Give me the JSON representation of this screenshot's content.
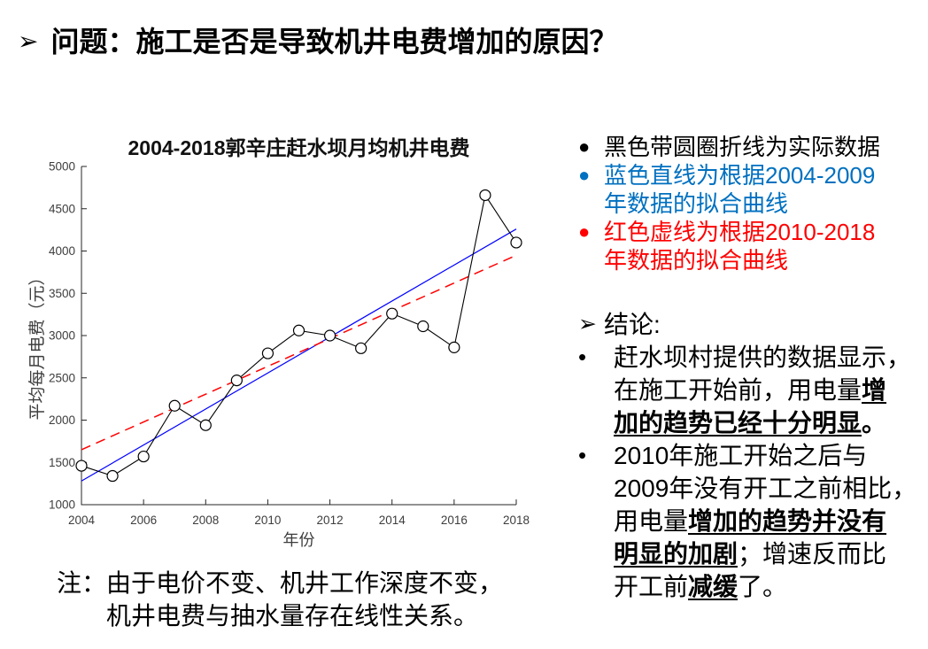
{
  "slide": {
    "title": {
      "marker": "➢",
      "text": "问题：施工是否是导致机井电费增加的原因？"
    },
    "note": {
      "label": "注：",
      "lines": [
        "由于电价不变、机井工作深度不变，",
        "机井电费与抽水量存在线性关系。"
      ]
    }
  },
  "colors": {
    "actual_series": "#000000",
    "fit_blue_line": "#0000FF",
    "fit_red_line": "#FF0000",
    "legend_blue_text": "#0070C0",
    "legend_red_text": "#FF0000",
    "axis": "#262626"
  },
  "chart_data": {
    "type": "line",
    "title": "2004-2018郭辛庄赶水坝月均机井电费",
    "xlabel": "年份",
    "ylabel": "平均每月电费（元）",
    "xlim": [
      2004,
      2018
    ],
    "ylim": [
      1000,
      5000
    ],
    "xticks": [
      2004,
      2006,
      2008,
      2010,
      2012,
      2014,
      2016,
      2018
    ],
    "yticks": [
      1000,
      1500,
      2000,
      2500,
      3000,
      3500,
      4000,
      4500,
      5000
    ],
    "grid": false,
    "legend_position": "none",
    "x": [
      2004,
      2005,
      2006,
      2007,
      2008,
      2009,
      2010,
      2011,
      2012,
      2013,
      2014,
      2015,
      2016,
      2017,
      2018
    ],
    "series": [
      {
        "name": "黑色带圆圈折线（实际数据）",
        "kind": "line-markers",
        "color": "#000000",
        "marker": "circle-open",
        "values": [
          1460,
          1340,
          1570,
          2170,
          1940,
          2470,
          2790,
          3060,
          3000,
          2850,
          3260,
          3110,
          2860,
          4660,
          4100
        ]
      },
      {
        "name": "蓝色直线（根据2004-2009年数据的拟合曲线）",
        "kind": "trend",
        "color": "#0000FF",
        "dashed": false,
        "endpoints": {
          "x": [
            2004,
            2018
          ],
          "y": [
            1280,
            4260
          ]
        }
      },
      {
        "name": "红色虚线（根据2010-2018年数据的拟合曲线）",
        "kind": "trend",
        "color": "#FF0000",
        "dashed": true,
        "endpoints": {
          "x": [
            2004,
            2018
          ],
          "y": [
            1650,
            3950
          ]
        }
      }
    ]
  },
  "legend": {
    "items": [
      {
        "bullet": "●",
        "color": "#000000",
        "lines": [
          "黑色带圆圈折线为实际数据",
          ""
        ]
      },
      {
        "bullet": "●",
        "color": "#0070C0",
        "lines": [
          "蓝色直线为根据2004-2009",
          "年数据的拟合曲线"
        ]
      },
      {
        "bullet": "●",
        "color": "#FF0000",
        "lines": [
          "红色虚线为根据2010-2018",
          "年数据的拟合曲线"
        ]
      }
    ]
  },
  "conclusion": {
    "header": {
      "marker": "➢",
      "text": "结论:"
    },
    "bullets": [
      {
        "marker": "•",
        "lines": [
          {
            "segments": [
              {
                "text": "赶水坝村提供的数据显示，"
              }
            ]
          },
          {
            "segments": [
              {
                "text": "在施工开始前，用电量"
              },
              {
                "text": "增",
                "em": true
              }
            ]
          },
          {
            "segments": [
              {
                "text": "加的趋势已经十分明显",
                "em": true
              },
              {
                "text": "。",
                "bold": true
              }
            ]
          }
        ]
      },
      {
        "marker": "•",
        "lines": [
          {
            "segments": [
              {
                "text": "2010年施工开始之后与"
              }
            ]
          },
          {
            "segments": [
              {
                "text": "2009年没有开工之前相比，"
              }
            ]
          },
          {
            "segments": [
              {
                "text": "用电量"
              },
              {
                "text": "增加的趋势并没有",
                "em": true
              }
            ]
          },
          {
            "segments": [
              {
                "text": "明显的加剧",
                "em": true
              },
              {
                "text": "；增速反而比"
              }
            ]
          },
          {
            "segments": [
              {
                "text": "开工前"
              },
              {
                "text": "减缓",
                "em": true
              },
              {
                "text": "了。"
              }
            ]
          }
        ]
      }
    ]
  }
}
